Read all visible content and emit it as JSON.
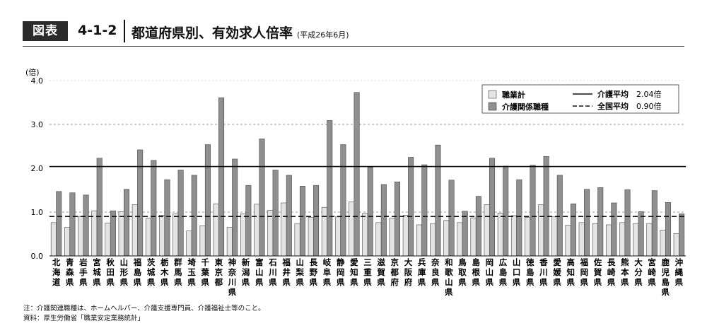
{
  "header": {
    "badge": "図表",
    "figure_no": "4-1-2",
    "title": "都道府県別、有効求人倍率",
    "subtitle": "(平成26年6月)"
  },
  "notes": {
    "note": "注：介護関連職種は、ホームヘルパー、介護支援専門員、介護福祉士等のこと。",
    "source": "資料：厚生労働省「職業安定業務統計」"
  },
  "chart_data": {
    "type": "bar",
    "ylabel": "(倍)",
    "ylim": [
      0,
      4.0
    ],
    "yticks": [
      "0.0",
      "1.0",
      "2.0",
      "3.0",
      "4.0"
    ],
    "grid": "dashed horizontal at 1.0 and 3.0",
    "legend_position": "top-right",
    "categories": [
      "北海道",
      "青森県",
      "岩手県",
      "宮城県",
      "秋田県",
      "山形県",
      "福島県",
      "茨城県",
      "栃木県",
      "群馬県",
      "埼玉県",
      "千葉県",
      "東京都",
      "神奈川県",
      "新潟県",
      "富山県",
      "石川県",
      "福井県",
      "山梨県",
      "長野県",
      "岐阜県",
      "静岡県",
      "愛知県",
      "三重県",
      "滋賀県",
      "京都府",
      "大阪府",
      "兵庫県",
      "奈良県",
      "和歌山県",
      "鳥取県",
      "島根県",
      "岡山県",
      "広島県",
      "山口県",
      "徳島県",
      "香川県",
      "愛媛県",
      "高知県",
      "福岡県",
      "佐賀県",
      "長崎県",
      "熊本県",
      "大分県",
      "宮崎県",
      "鹿児島県",
      "沖縄県"
    ],
    "series": [
      {
        "name": "職業計",
        "color": "#e4e4e4",
        "values": [
          0.76,
          0.65,
          0.9,
          1.03,
          0.75,
          1.01,
          1.17,
          0.86,
          0.93,
          0.96,
          0.57,
          0.69,
          1.19,
          0.65,
          0.96,
          1.18,
          1.04,
          1.21,
          0.73,
          0.88,
          1.11,
          0.89,
          1.23,
          0.97,
          0.76,
          0.86,
          0.93,
          0.71,
          0.73,
          0.81,
          0.76,
          0.87,
          1.17,
          0.98,
          0.92,
          0.88,
          1.17,
          0.89,
          0.7,
          0.76,
          0.74,
          0.71,
          0.76,
          0.74,
          0.74,
          0.59,
          0.51
        ]
      },
      {
        "name": "介護関係職種",
        "color": "#8f8f8f",
        "values": [
          1.47,
          1.44,
          1.39,
          2.23,
          1.03,
          1.52,
          2.42,
          2.18,
          1.74,
          1.96,
          1.84,
          2.54,
          3.61,
          2.21,
          1.61,
          2.67,
          1.96,
          1.84,
          1.59,
          1.61,
          3.09,
          2.54,
          3.73,
          2.02,
          1.63,
          1.69,
          2.25,
          2.08,
          2.53,
          1.73,
          1.02,
          1.36,
          2.23,
          2.05,
          1.74,
          2.07,
          2.27,
          1.84,
          1.19,
          1.52,
          1.56,
          1.21,
          1.51,
          1.01,
          1.49,
          1.22,
          0.96
        ]
      }
    ],
    "reference_lines": [
      {
        "name": "介護平均",
        "value": 2.04,
        "label": "2.04倍",
        "style": "solid"
      },
      {
        "name": "全国平均",
        "value": 0.9,
        "label": "0.90倍",
        "style": "dashed"
      }
    ]
  }
}
